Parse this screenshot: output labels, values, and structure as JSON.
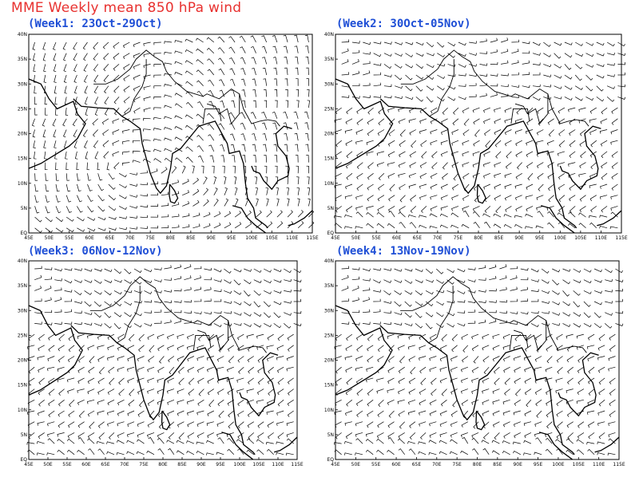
{
  "title": "MME Weekly mean 850 hPa wind",
  "map": {
    "lon_range": [
      45,
      115
    ],
    "lat_range": [
      0,
      40
    ],
    "lon_ticks": [
      "45E",
      "50E",
      "55E",
      "60E",
      "65E",
      "70E",
      "75E",
      "80E",
      "85E",
      "90E",
      "95E",
      "100E",
      "105E",
      "110E",
      "115E"
    ],
    "lat_ticks": [
      "EQ",
      "5N",
      "10N",
      "15N",
      "20N",
      "25N",
      "30N",
      "35N",
      "40N"
    ],
    "barb_color": "#000000",
    "coast_color": "#000000"
  },
  "panels": [
    {
      "title": "(Week1: 23Oct-29Oct)",
      "regime": "cyclonic"
    },
    {
      "title": "(Week2: 30Oct-05Nov)",
      "regime": "northeasterly"
    },
    {
      "title": "(Week3: 06Nov-12Nov)",
      "regime": "northeasterly"
    },
    {
      "title": "(Week4: 13Nov-19Nov)",
      "regime": "northeasterly"
    }
  ],
  "colors": {
    "title": "#e8312f",
    "panel_title": "#1f4fd6"
  }
}
